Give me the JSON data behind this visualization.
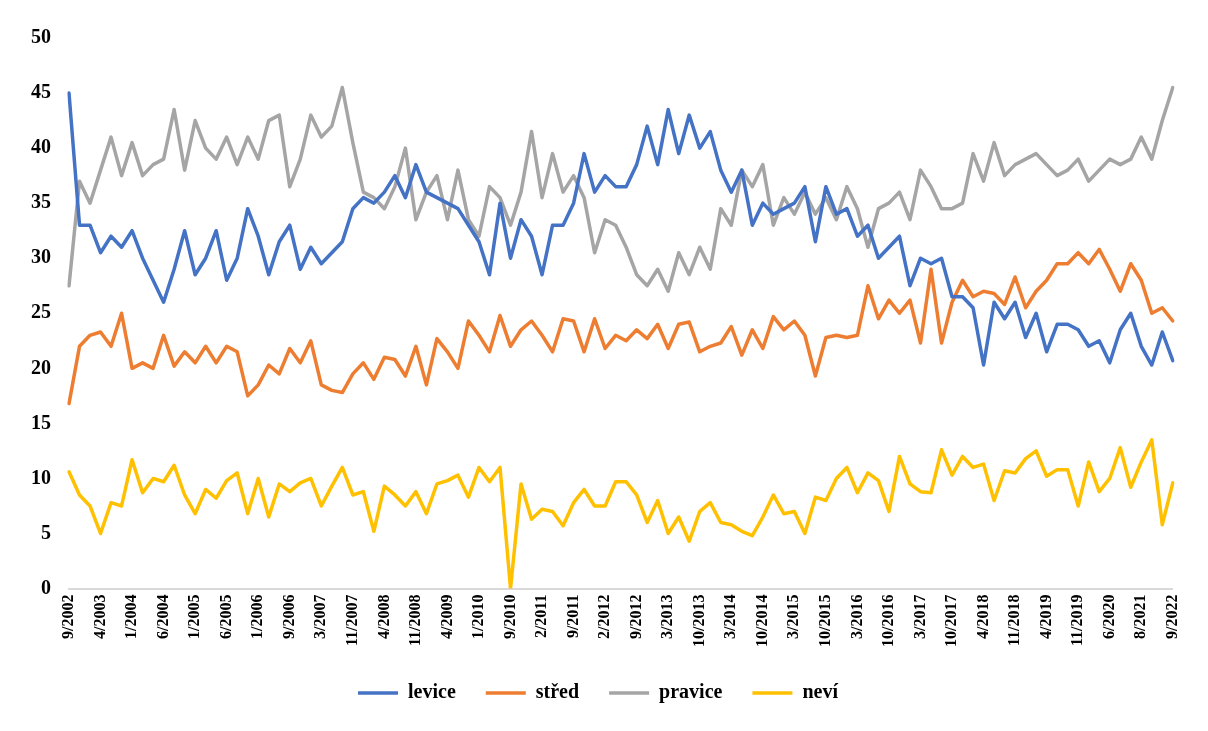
{
  "chart_data": {
    "type": "line",
    "categories": [
      "9/2002",
      null,
      null,
      "4/2003",
      null,
      null,
      "1/2004",
      null,
      null,
      "6/2004",
      null,
      null,
      "1/2005",
      null,
      null,
      "6/2005",
      null,
      null,
      "1/2006",
      null,
      null,
      "9/2006",
      null,
      null,
      "3/2007",
      null,
      null,
      "11/2007",
      null,
      null,
      "4/2008",
      null,
      null,
      "11/2008",
      null,
      null,
      "4/2009",
      null,
      null,
      "1/2010",
      null,
      null,
      "9/2010",
      null,
      null,
      "2/2011",
      null,
      null,
      "9/2011",
      null,
      null,
      "2/2012",
      null,
      null,
      "9/2012",
      null,
      null,
      "3/2013",
      null,
      null,
      "10/2013",
      null,
      null,
      "3/2014",
      null,
      null,
      "10/2014",
      null,
      null,
      "3/2015",
      null,
      null,
      "10/2015",
      null,
      null,
      "3/2016",
      null,
      null,
      "10/2016",
      null,
      null,
      "3/2017",
      null,
      null,
      "10/2017",
      null,
      null,
      "4/2018",
      null,
      null,
      "11/2018",
      null,
      null,
      "4/2019",
      null,
      null,
      "11/2019",
      null,
      null,
      "6/2020",
      null,
      null,
      "8/2021",
      null,
      null,
      "9/2022"
    ],
    "series": [
      {
        "name": "levice",
        "color": "#4472c4",
        "values": [
          45,
          33,
          33,
          30.5,
          32,
          31,
          32.5,
          30,
          28,
          26,
          29,
          32.5,
          28.5,
          30,
          32.5,
          28,
          30,
          34.5,
          32,
          28.5,
          31.5,
          33,
          29,
          31,
          29.5,
          30.5,
          31.5,
          34.5,
          35.5,
          35,
          36,
          37.5,
          35.5,
          38.5,
          36,
          35.5,
          35,
          34.5,
          33,
          31.5,
          28.5,
          35,
          30,
          33.5,
          32,
          28.5,
          33,
          33,
          35,
          39.5,
          36,
          37.5,
          36.5,
          36.5,
          38.5,
          42,
          38.5,
          43.5,
          39.5,
          43,
          40,
          41.5,
          38,
          36,
          38,
          33,
          35,
          34,
          34.5,
          35,
          36.5,
          31.5,
          36.5,
          34,
          34.5,
          32,
          33,
          30,
          31,
          32,
          27.5,
          30,
          29.5,
          30,
          26.5,
          26.5,
          25.5,
          20.3,
          26,
          24.5,
          26,
          22.8,
          25,
          21.5,
          24,
          24,
          23.5,
          22,
          22.5,
          20.5,
          23.5,
          25,
          22,
          20.3,
          23.3,
          20.7
        ]
      },
      {
        "name": "střed",
        "color": "#ed7d31",
        "values": [
          16.8,
          22,
          23,
          23.3,
          22,
          25,
          20,
          20.5,
          20,
          23,
          20.2,
          21.5,
          20.5,
          22,
          20.5,
          22,
          21.5,
          17.5,
          18.5,
          20.3,
          19.5,
          21.8,
          20.5,
          22.5,
          18.5,
          18,
          17.8,
          19.5,
          20.5,
          19,
          21,
          20.8,
          19.3,
          22,
          18.5,
          22.7,
          21.5,
          20,
          24.3,
          23,
          21.5,
          24.8,
          22,
          23.5,
          24.3,
          23,
          21.5,
          24.5,
          24.3,
          21.5,
          24.5,
          21.8,
          23,
          22.5,
          23.5,
          22.7,
          24,
          21.8,
          24,
          24.2,
          21.5,
          22,
          22.3,
          23.8,
          21.2,
          23.5,
          21.8,
          24.7,
          23.5,
          24.3,
          23,
          19.3,
          22.8,
          23,
          22.8,
          23,
          27.5,
          24.5,
          26.2,
          25,
          26.2,
          22.3,
          29,
          22.3,
          26,
          28,
          26.5,
          27,
          26.8,
          25.8,
          28.3,
          25.5,
          27,
          28,
          29.5,
          29.5,
          30.5,
          29.5,
          30.8,
          29,
          27,
          29.5,
          28,
          25,
          25.5,
          24.3
        ]
      },
      {
        "name": "pravice",
        "color": "#a5a5a5",
        "values": [
          27.5,
          37,
          35,
          38,
          41,
          37.5,
          40.5,
          37.5,
          38.5,
          39,
          43.5,
          38,
          42.5,
          40,
          39,
          41,
          38.5,
          41,
          39,
          42.5,
          43,
          36.5,
          39,
          43,
          41,
          42,
          45.5,
          40.5,
          36,
          35.5,
          34.5,
          36.5,
          40,
          33.5,
          36,
          37.5,
          33.5,
          38,
          33.5,
          32,
          36.5,
          35.5,
          33,
          36,
          41.5,
          35.5,
          39.5,
          36,
          37.5,
          35.5,
          30.5,
          33.5,
          33,
          31,
          28.5,
          27.5,
          29,
          27,
          30.5,
          28.5,
          31,
          29,
          34.5,
          33,
          38,
          36.5,
          38.5,
          33,
          35.5,
          34,
          36,
          34,
          35.5,
          33.5,
          36.5,
          34.5,
          31,
          34.5,
          35,
          36,
          33.5,
          38,
          36.5,
          34.5,
          34.5,
          35,
          39.5,
          37,
          40.5,
          37.5,
          38.5,
          39,
          39.5,
          38.5,
          37.5,
          38,
          39,
          37,
          38,
          39,
          38.5,
          39,
          41,
          39,
          42.5,
          45.5
        ]
      },
      {
        "name": "neví",
        "color": "#ffc000",
        "values": [
          10.6,
          8.5,
          7.5,
          5,
          7.8,
          7.5,
          11.7,
          8.7,
          10,
          9.7,
          11.2,
          8.5,
          6.8,
          9,
          8.2,
          9.8,
          10.5,
          6.8,
          10,
          6.5,
          9.5,
          8.8,
          9.6,
          10,
          7.5,
          9.3,
          11,
          8.5,
          8.8,
          5.2,
          9.3,
          8.5,
          7.5,
          8.8,
          6.8,
          9.5,
          9.8,
          10.3,
          8.3,
          11,
          9.7,
          11,
          0,
          9.5,
          6.3,
          7.2,
          7,
          5.7,
          7.8,
          9,
          7.5,
          7.5,
          9.7,
          9.7,
          8.5,
          6,
          8,
          5,
          6.5,
          4.3,
          7,
          7.8,
          6,
          5.8,
          5.2,
          4.8,
          6.5,
          8.5,
          6.8,
          7,
          5,
          8.3,
          8,
          10,
          11,
          8.7,
          10.5,
          9.8,
          7,
          12,
          9.5,
          8.8,
          8.7,
          12.6,
          10.3,
          12,
          11,
          11.3,
          8,
          10.7,
          10.5,
          11.8,
          12.5,
          10.2,
          10.8,
          10.8,
          7.5,
          11.5,
          8.8,
          10,
          12.8,
          9.2,
          11.5,
          13.5,
          5.8,
          9.6
        ]
      }
    ],
    "ylim": [
      0,
      50
    ],
    "yticks": [
      0,
      5,
      10,
      15,
      20,
      25,
      30,
      35,
      40,
      45,
      50
    ],
    "grid": false,
    "legend": "bottom",
    "marker": "none",
    "line_style": "solid"
  }
}
